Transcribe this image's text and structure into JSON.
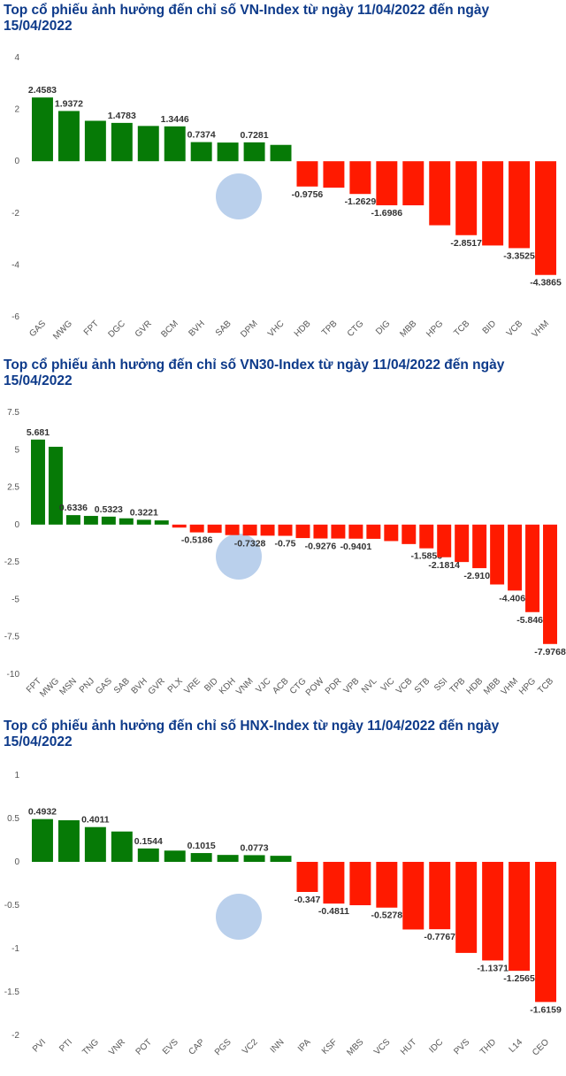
{
  "chart_data": [
    {
      "type": "bar",
      "title": "Top cổ phiếu ảnh hưởng đến chỉ số VN-Index từ ngày 11/04/2022 đến ngày 15/04/2022",
      "categories": [
        "GAS",
        "MWG",
        "FPT",
        "DGC",
        "GVR",
        "BCM",
        "BVH",
        "SAB",
        "DPM",
        "VHC",
        "HDB",
        "TPB",
        "CTG",
        "DIG",
        "MBB",
        "HPG",
        "TCB",
        "BID",
        "VCB",
        "VHM"
      ],
      "values": [
        2.4583,
        1.9372,
        1.56,
        1.4783,
        1.36,
        1.3446,
        0.7374,
        0.72,
        0.7281,
        0.63,
        -0.9756,
        -1.02,
        -1.2629,
        -1.6986,
        -1.7,
        -2.47,
        -2.8517,
        -3.25,
        -3.3525,
        -4.3865
      ],
      "value_labels": [
        "2.4583",
        "1.9372",
        null,
        "1.4783",
        null,
        "1.3446",
        "0.7374",
        null,
        "0.7281",
        null,
        "-0.9756",
        null,
        "-1.2629",
        "-1.6986",
        null,
        null,
        "-2.8517",
        null,
        "-3.3525",
        "-4.3865"
      ],
      "positive_color": "#067a06",
      "negative_color": "#ff1a00",
      "ylim": [
        -6,
        4
      ],
      "yticks": [
        -6,
        -4,
        -2,
        0,
        2,
        4
      ]
    },
    {
      "type": "bar",
      "title": "Top cổ phiếu ảnh hưởng đến chỉ số VN30-Index từ ngày 11/04/2022 đến ngày 15/04/2022",
      "categories": [
        "FPT",
        "MWG",
        "MSN",
        "PNJ",
        "GAS",
        "SAB",
        "BVH",
        "GVR",
        "PLX",
        "VRE",
        "BID",
        "KDH",
        "VNM",
        "VJC",
        "ACB",
        "CTG",
        "POW",
        "PDR",
        "VPB",
        "NVL",
        "VIC",
        "VCB",
        "STB",
        "SSI",
        "TPB",
        "HDB",
        "MBB",
        "VHM",
        "HPG",
        "TCB"
      ],
      "values": [
        5.681,
        5.2,
        0.6336,
        0.58,
        0.5323,
        0.42,
        0.3221,
        0.28,
        -0.2,
        -0.5186,
        -0.55,
        -0.7,
        -0.7328,
        -0.74,
        -0.75,
        -0.9,
        -0.9276,
        -0.93,
        -0.9401,
        -0.95,
        -1.1,
        -1.3,
        -1.5856,
        -2.1814,
        -2.5,
        -2.9103,
        -4.0,
        -4.4064,
        -5.8469,
        -7.9768
      ],
      "value_labels": [
        "5.681",
        null,
        "0.6336",
        null,
        "0.5323",
        null,
        "0.3221",
        null,
        null,
        "-0.5186",
        null,
        null,
        "-0.7328",
        null,
        "-0.75",
        null,
        "-0.9276",
        null,
        "-0.9401",
        null,
        null,
        null,
        "-1.5856",
        "-2.1814",
        null,
        "-2.9103",
        null,
        "-4.4064",
        "-5.8469",
        "-7.9768"
      ],
      "positive_color": "#067a06",
      "negative_color": "#ff1a00",
      "ylim": [
        -10,
        7.5
      ],
      "yticks": [
        -10,
        -7.5,
        -5,
        -2.5,
        0,
        2.5,
        5,
        7.5
      ]
    },
    {
      "type": "bar",
      "title": "Top cổ phiếu ảnh hưởng đến chỉ số HNX-Index từ ngày 11/04/2022 đến ngày 15/04/2022",
      "categories": [
        "PVI",
        "PTI",
        "TNG",
        "VNR",
        "POT",
        "EVS",
        "CAP",
        "PGS",
        "VC2",
        "INN",
        "IPA",
        "KSF",
        "MBS",
        "VCS",
        "HUT",
        "IDC",
        "PVS",
        "THD",
        "L14",
        "CEO"
      ],
      "values": [
        0.4932,
        0.48,
        0.4011,
        0.35,
        0.1544,
        0.13,
        0.1015,
        0.08,
        0.0773,
        0.07,
        -0.347,
        -0.4811,
        -0.5,
        -0.5278,
        -0.78,
        -0.7767,
        -1.05,
        -1.1371,
        -1.2565,
        -1.6159
      ],
      "value_labels": [
        "0.4932",
        null,
        "0.4011",
        null,
        "0.1544",
        null,
        "0.1015",
        null,
        "0.0773",
        null,
        "-0.347",
        "-0.4811",
        null,
        "-0.5278",
        null,
        "-0.7767",
        null,
        "-1.1371",
        "-1.2565",
        "-1.6159"
      ],
      "positive_color": "#067a06",
      "negative_color": "#ff1a00",
      "ylim": [
        -2,
        1
      ],
      "yticks": [
        -2,
        -1.5,
        -1,
        -0.5,
        0,
        0.5,
        1
      ]
    }
  ]
}
